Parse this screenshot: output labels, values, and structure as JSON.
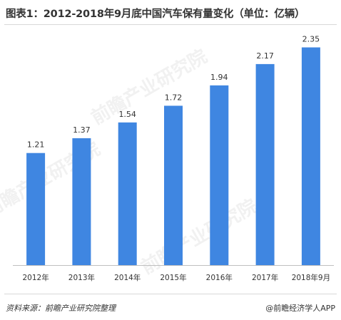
{
  "title": "图表1：2012-2018年9月底中国汽车保有量变化（单位：亿辆）",
  "source": "资料来源：前瞻产业研究院整理",
  "credit": "@前瞻经济学人APP",
  "watermark": "前瞻产业研究院",
  "chart_data": {
    "type": "bar",
    "categories": [
      "2012年",
      "2013年",
      "2014年",
      "2015年",
      "2016年",
      "2017年",
      "2018年9月"
    ],
    "values": [
      1.21,
      1.37,
      1.54,
      1.72,
      1.94,
      2.17,
      2.35
    ],
    "title": "图表1：2012-2018年9月底中国汽车保有量变化（单位：亿辆）",
    "xlabel": "",
    "ylabel": "",
    "ylim": [
      0,
      2.5
    ],
    "grid": false,
    "bar_color": "#3f86e1",
    "label_color": "#333333"
  }
}
